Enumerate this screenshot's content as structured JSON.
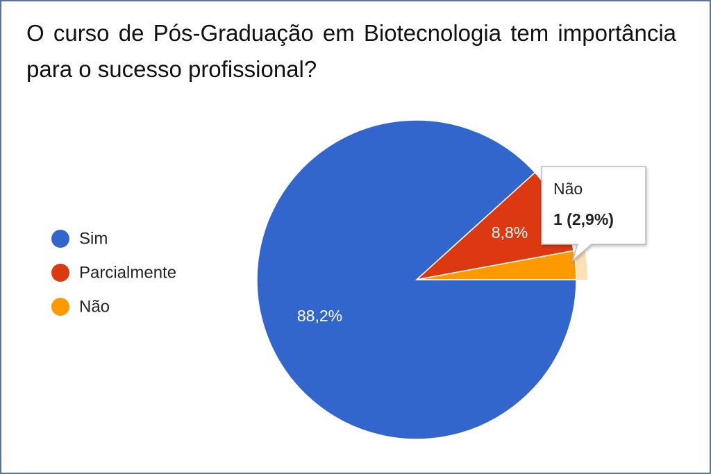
{
  "chart_data": {
    "type": "pie",
    "title": "O curso de Pós-Graduação em Biotecnologia tem importância para o sucesso profissional?",
    "categories": [
      "Sim",
      "Parcialmente",
      "Não"
    ],
    "values": [
      88.2,
      8.8,
      2.9
    ],
    "value_labels": [
      "88,2%",
      "8,8%",
      null
    ],
    "colors": [
      "#3366cc",
      "#dc3912",
      "#ff9900"
    ],
    "legend": "left",
    "tooltip": {
      "title": "Não",
      "text": "1 (2,9%)"
    }
  }
}
